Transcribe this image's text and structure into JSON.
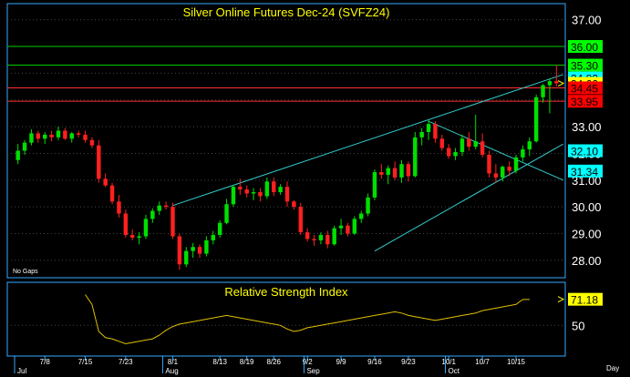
{
  "chart_data": {
    "type": "candlestick",
    "title": "Silver Online Futures Dec-24 (SVFZ24)",
    "note": "No Gaps",
    "axis_right_label": "Day",
    "yticks": [
      "37.00",
      "36.00",
      "35.00",
      "34.00",
      "33.00",
      "32.00",
      "31.00",
      "30.00",
      "29.00",
      "28.00"
    ],
    "yvals": [
      37,
      36,
      35,
      34,
      33,
      32,
      31,
      30,
      29,
      28
    ],
    "ylim": [
      27.35,
      37.6
    ],
    "x_tick_labels": [
      "7/8",
      "7/15",
      "7/23",
      "8/1",
      "8/13",
      "8/19",
      "8/26",
      "9/2",
      "9/9",
      "9/16",
      "9/23",
      "10/1",
      "10/7",
      "10/15"
    ],
    "x_tick_idx": [
      4,
      10,
      16,
      23,
      30,
      34,
      38,
      43,
      48,
      53,
      58,
      64,
      69,
      74
    ],
    "month_labels": [
      "Jul",
      "Aug",
      "Sep",
      "Oct"
    ],
    "month_idx": [
      0,
      22,
      43,
      64
    ],
    "candles": [
      [
        31.75,
        32.35,
        31.6,
        32.1
      ],
      [
        32.1,
        32.5,
        31.95,
        32.4
      ],
      [
        32.4,
        32.9,
        32.3,
        32.75
      ],
      [
        32.75,
        32.85,
        32.4,
        32.55
      ],
      [
        32.55,
        32.8,
        32.35,
        32.7
      ],
      [
        32.7,
        32.85,
        32.45,
        32.6
      ],
      [
        32.6,
        33.0,
        32.5,
        32.85
      ],
      [
        32.85,
        32.95,
        32.5,
        32.55
      ],
      [
        32.55,
        32.8,
        32.4,
        32.75
      ],
      [
        32.75,
        32.85,
        32.6,
        32.7
      ],
      [
        32.7,
        32.85,
        32.4,
        32.5
      ],
      [
        32.5,
        32.6,
        32.2,
        32.3
      ],
      [
        32.3,
        32.5,
        30.9,
        31.05
      ],
      [
        31.05,
        31.25,
        30.75,
        30.8
      ],
      [
        30.8,
        30.9,
        30.1,
        30.2
      ],
      [
        30.2,
        30.45,
        29.6,
        29.75
      ],
      [
        29.75,
        29.9,
        28.85,
        28.95
      ],
      [
        28.95,
        29.15,
        28.75,
        28.85
      ],
      [
        28.85,
        29.05,
        28.6,
        28.9
      ],
      [
        28.9,
        29.7,
        28.8,
        29.55
      ],
      [
        29.55,
        29.95,
        29.4,
        29.85
      ],
      [
        29.85,
        30.2,
        29.7,
        30.05
      ],
      [
        30.05,
        30.2,
        29.9,
        30.0
      ],
      [
        30.0,
        30.15,
        28.8,
        28.9
      ],
      [
        28.9,
        29.0,
        27.65,
        27.85
      ],
      [
        27.85,
        28.5,
        27.75,
        28.35
      ],
      [
        28.35,
        28.65,
        28.1,
        28.5
      ],
      [
        28.5,
        28.6,
        28.1,
        28.25
      ],
      [
        28.25,
        28.9,
        28.15,
        28.75
      ],
      [
        28.75,
        29.1,
        28.6,
        28.95
      ],
      [
        28.95,
        29.5,
        28.85,
        29.4
      ],
      [
        29.4,
        30.3,
        29.35,
        30.1
      ],
      [
        30.1,
        30.8,
        30.0,
        30.75
      ],
      [
        30.75,
        31.05,
        30.45,
        30.65
      ],
      [
        30.65,
        30.8,
        30.35,
        30.5
      ],
      [
        30.5,
        30.7,
        30.25,
        30.55
      ],
      [
        30.55,
        30.7,
        30.2,
        30.4
      ],
      [
        30.4,
        31.1,
        30.3,
        30.95
      ],
      [
        30.95,
        31.1,
        30.4,
        30.55
      ],
      [
        30.55,
        30.85,
        30.45,
        30.75
      ],
      [
        30.75,
        30.95,
        30.0,
        30.2
      ],
      [
        30.2,
        30.25,
        29.9,
        30.0
      ],
      [
        30.0,
        30.15,
        28.95,
        29.05
      ],
      [
        29.05,
        29.2,
        28.7,
        28.8
      ],
      [
        28.8,
        28.95,
        28.55,
        28.75
      ],
      [
        28.75,
        29.05,
        28.6,
        28.95
      ],
      [
        28.95,
        29.1,
        28.45,
        28.6
      ],
      [
        28.6,
        29.3,
        28.55,
        29.2
      ],
      [
        29.2,
        29.55,
        28.95,
        29.3
      ],
      [
        29.3,
        29.4,
        28.9,
        29.0
      ],
      [
        29.0,
        29.65,
        28.95,
        29.55
      ],
      [
        29.55,
        29.85,
        29.4,
        29.75
      ],
      [
        29.75,
        30.5,
        29.65,
        30.35
      ],
      [
        30.35,
        31.4,
        30.25,
        31.3
      ],
      [
        31.3,
        31.6,
        31.05,
        31.2
      ],
      [
        31.2,
        31.55,
        30.85,
        31.45
      ],
      [
        31.45,
        31.7,
        31.0,
        31.1
      ],
      [
        31.1,
        31.75,
        30.9,
        31.6
      ],
      [
        31.6,
        31.7,
        30.95,
        31.15
      ],
      [
        31.15,
        32.8,
        31.1,
        32.6
      ],
      [
        32.6,
        32.95,
        32.3,
        32.8
      ],
      [
        32.8,
        33.25,
        32.5,
        33.1
      ],
      [
        33.1,
        33.2,
        32.4,
        32.55
      ],
      [
        32.55,
        32.7,
        32.1,
        32.2
      ],
      [
        32.2,
        32.35,
        31.8,
        31.9
      ],
      [
        31.9,
        32.2,
        31.75,
        32.05
      ],
      [
        32.05,
        32.7,
        31.9,
        32.55
      ],
      [
        32.55,
        32.8,
        32.1,
        32.25
      ],
      [
        32.25,
        33.45,
        32.15,
        32.45
      ],
      [
        32.45,
        32.75,
        31.85,
        31.95
      ],
      [
        31.95,
        32.1,
        31.1,
        31.25
      ],
      [
        31.25,
        31.6,
        30.9,
        31.1
      ],
      [
        31.1,
        31.55,
        30.95,
        31.5
      ],
      [
        31.5,
        31.7,
        31.15,
        31.35
      ],
      [
        31.35,
        31.95,
        31.25,
        31.85
      ],
      [
        31.85,
        32.3,
        31.7,
        32.15
      ],
      [
        32.15,
        32.6,
        31.9,
        32.45
      ],
      [
        32.45,
        34.2,
        32.4,
        34.1
      ],
      [
        34.1,
        34.6,
        33.9,
        34.55
      ],
      [
        34.55,
        34.8,
        33.5,
        34.7
      ],
      [
        34.7,
        35.3,
        34.5,
        34.62
      ]
    ],
    "hlines": [
      {
        "value": 36.0,
        "color": "#00cc00"
      },
      {
        "value": 35.3,
        "color": "#00cc00"
      },
      {
        "value": 34.45,
        "color": "#ff3030"
      },
      {
        "value": 33.95,
        "color": "#ff3030"
      }
    ],
    "trendlines": [
      {
        "from": [
          23,
          30.05
        ],
        "to": [
          81,
          34.95
        ],
        "color": "#33cccc"
      },
      {
        "from": [
          53,
          28.35
        ],
        "to": [
          81,
          32.35
        ],
        "color": "#33cccc"
      },
      {
        "from": [
          61,
          33.2
        ],
        "to": [
          81,
          31.0
        ],
        "color": "#33cccc"
      }
    ],
    "price_badges": [
      {
        "text": "36.00",
        "value": 36.0,
        "bg": "#00ff00",
        "fg": "#000000"
      },
      {
        "text": "35.30",
        "value": 35.3,
        "bg": "#00ff00",
        "fg": "#000000"
      },
      {
        "text": "34.82",
        "value": 34.82,
        "bg": "#00ffff",
        "fg": "#000000"
      },
      {
        "text": "34.62",
        "value": 34.62,
        "bg": "#ffff00",
        "fg": "#000000"
      },
      {
        "text": "34.45",
        "value": 34.45,
        "bg": "#ff0000",
        "fg": "#000000"
      },
      {
        "text": "33.95",
        "value": 33.95,
        "bg": "#ff0000",
        "fg": "#000000"
      },
      {
        "text": "32.10",
        "value": 32.1,
        "bg": "#00ffff",
        "fg": "#000000"
      },
      {
        "text": "31.34",
        "value": 31.34,
        "bg": "#00ffff",
        "fg": "#000000"
      }
    ],
    "rsi": {
      "title": "Relative Strength Index",
      "ylim": [
        25,
        85
      ],
      "yticks": [
        "50"
      ],
      "yvals": [
        50
      ],
      "last_label": "71.18",
      "last_value": 71.18,
      "start_idx": 10,
      "values": [
        75,
        67,
        45,
        40,
        39,
        37,
        35,
        36,
        37,
        38,
        39,
        42,
        46,
        49,
        51,
        52,
        53,
        54,
        55,
        56,
        57,
        58,
        57,
        56,
        55,
        54,
        53,
        52,
        51,
        50,
        47,
        45,
        46,
        48,
        49,
        50,
        51,
        52,
        53,
        54,
        55,
        56,
        57,
        58,
        59,
        60,
        61,
        60,
        58,
        57,
        56,
        55,
        54,
        55,
        56,
        57,
        58,
        59,
        60,
        62,
        63,
        64,
        65,
        66,
        67,
        71,
        71
      ]
    },
    "colors": {
      "up": "#00e000",
      "down": "#ff2020",
      "grid": "#444444",
      "axis": "#33aaff",
      "rsi": "#e0c000"
    }
  }
}
